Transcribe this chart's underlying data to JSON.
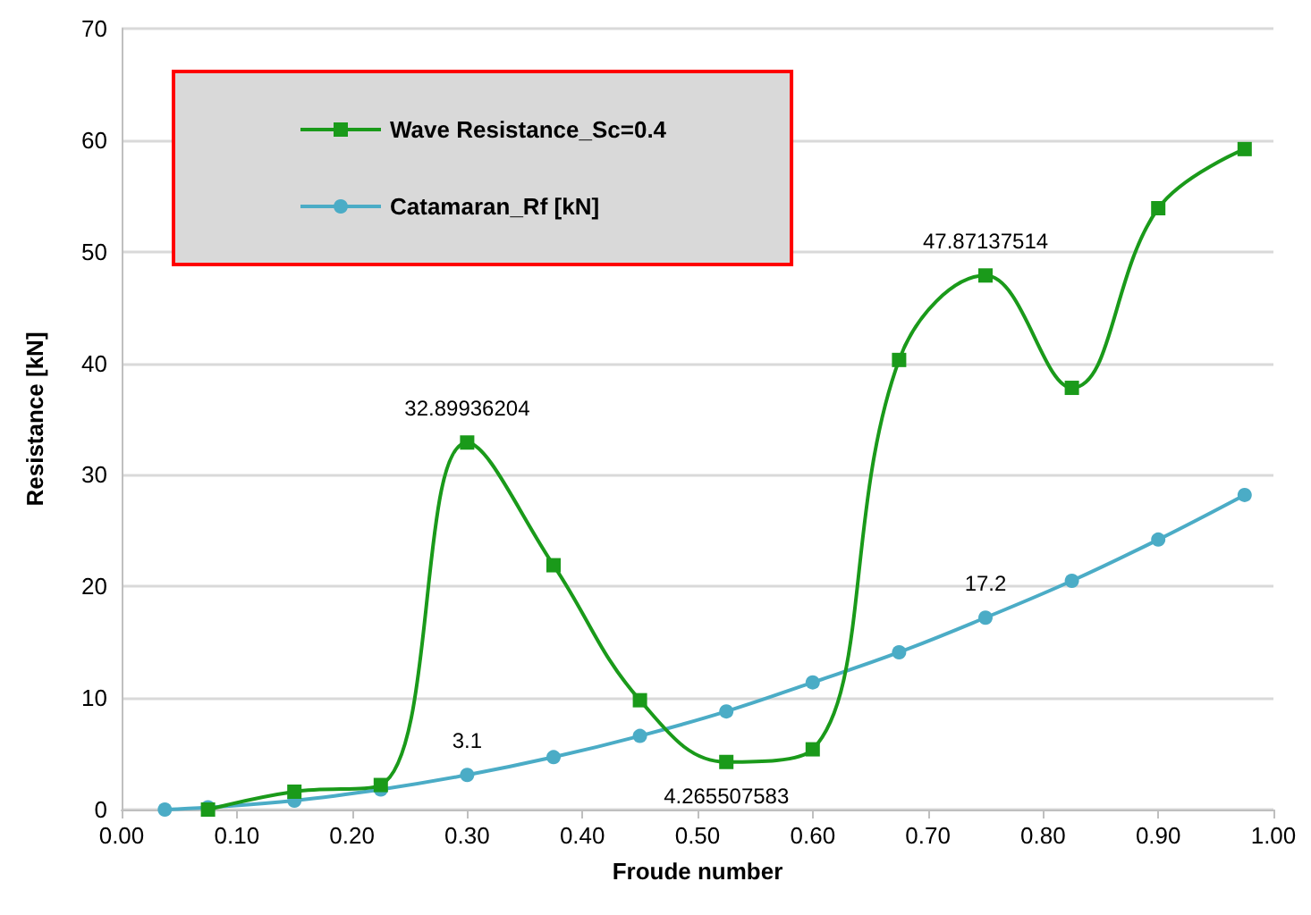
{
  "chart_data": {
    "type": "line",
    "xlabel": "Froude number",
    "ylabel": "Resistance [kN]",
    "xlim": [
      0,
      1
    ],
    "xticks": [
      {
        "value": 0,
        "label": "0.00"
      },
      {
        "value": 0.1,
        "label": "0.10"
      },
      {
        "value": 0.2,
        "label": "0.20"
      },
      {
        "value": 0.3,
        "label": "0.30"
      },
      {
        "value": 0.4,
        "label": "0.40"
      },
      {
        "value": 0.5,
        "label": "0.50"
      },
      {
        "value": 0.6,
        "label": "0.60"
      },
      {
        "value": 0.7,
        "label": "0.70"
      },
      {
        "value": 0.8,
        "label": "0.80"
      },
      {
        "value": 0.9,
        "label": "0.90"
      },
      {
        "value": 1,
        "label": "1.00"
      }
    ],
    "ylim": [
      0,
      70
    ],
    "yticks": [
      0,
      10,
      20,
      30,
      40,
      50,
      60,
      70
    ],
    "grid": "y",
    "legend": "top left",
    "series": [
      {
        "name": "Wave Resistance_Sc=0.4",
        "color": "#1a9a1a",
        "marker": "square",
        "x": [
          0.075,
          0.15,
          0.225,
          0.3,
          0.375,
          0.45,
          0.525,
          0.6,
          0.675,
          0.75,
          0.825,
          0.9,
          0.975
        ],
        "values": [
          0,
          1.6,
          2.2,
          32.89936204,
          21.9,
          9.8,
          4.265507583,
          5.4,
          40.3,
          47.87137514,
          37.8,
          53.9,
          59.2
        ],
        "value_labels": [
          null,
          null,
          null,
          "32.89936204",
          null,
          null,
          "4.265507583",
          null,
          null,
          "47.87137514",
          null,
          null,
          null
        ]
      },
      {
        "name": "Catamaran_Rf [kN]",
        "color": "#4bacc6",
        "marker": "circle",
        "x": [
          0.0375,
          0.075,
          0.15,
          0.225,
          0.3,
          0.375,
          0.45,
          0.525,
          0.6,
          0.675,
          0.75,
          0.825,
          0.9,
          0.975
        ],
        "values": [
          0,
          0.2,
          0.8,
          1.8,
          3.1,
          4.7,
          6.6,
          8.8,
          11.4,
          14.1,
          17.2,
          20.5,
          24.2,
          28.2
        ],
        "value_labels": [
          null,
          null,
          null,
          null,
          "3.1",
          null,
          null,
          null,
          null,
          null,
          "17.2",
          null,
          null,
          null
        ]
      }
    ]
  }
}
